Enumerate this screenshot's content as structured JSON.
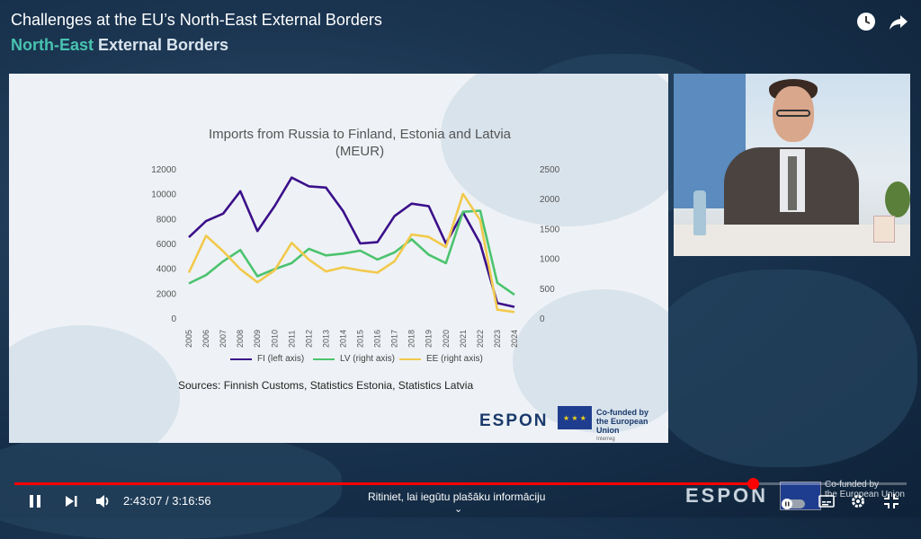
{
  "video": {
    "title": "Challenges at the EU’s North-East External Borders",
    "subtitle_accent": "North-East",
    "subtitle_rest": " External Borders"
  },
  "top_icons": [
    "watch-later-icon",
    "share-icon"
  ],
  "slide": {
    "title_line1": "Imports from Russia to Finland, Estonia and Latvia",
    "title_line2": "(MEUR)",
    "legend": [
      {
        "label": "FI (left axis)",
        "color": "#3b0f8a"
      },
      {
        "label": "LV (right axis)",
        "color": "#4cc36f"
      },
      {
        "label": "EE (right axis)",
        "color": "#f2c94c"
      }
    ],
    "sources": "Sources: Finnish Customs, Statistics Estonia, Statistics Latvia",
    "logo": "ESPON",
    "cofund_line1": "Co-funded by",
    "cofund_line2": "the European Union",
    "cofund_small": "Interreg"
  },
  "chart_data": {
    "type": "line",
    "title": "Imports from Russia to Finland, Estonia and Latvia (MEUR)",
    "x": [
      "2005",
      "2006",
      "2007",
      "2008",
      "2009",
      "2010",
      "2011",
      "2012",
      "2013",
      "2014",
      "2015",
      "2016",
      "2017",
      "2018",
      "2019",
      "2020",
      "2021",
      "2022",
      "2023",
      "2024"
    ],
    "left_ticks": [
      "12000",
      "10000",
      "8000",
      "6000",
      "4000",
      "2000",
      "0"
    ],
    "right_ticks": [
      "2500",
      "2000",
      "1500",
      "1000",
      "500",
      "0"
    ],
    "ylim_left": [
      0,
      12000
    ],
    "ylim_right": [
      0,
      2500
    ],
    "series": [
      {
        "name": "FI (left axis)",
        "axis": "left",
        "color": "#3b0f8a",
        "values": [
          6500,
          7800,
          8400,
          10200,
          7000,
          9000,
          11300,
          10600,
          10500,
          8600,
          6000,
          6100,
          8200,
          9200,
          9000,
          6000,
          8500,
          6000,
          1200,
          900
        ]
      },
      {
        "name": "LV (right axis)",
        "axis": "right",
        "color": "#4cc36f",
        "values": [
          580,
          720,
          950,
          1140,
          700,
          820,
          920,
          1160,
          1050,
          1080,
          1130,
          980,
          1100,
          1320,
          1060,
          920,
          1780,
          1800,
          590,
          390
        ]
      },
      {
        "name": "EE (right axis)",
        "axis": "right",
        "color": "#f2c94c",
        "values": [
          760,
          1380,
          1120,
          820,
          600,
          800,
          1260,
          980,
          780,
          850,
          800,
          760,
          950,
          1400,
          1360,
          1190,
          2080,
          1640,
          140,
          100
        ]
      }
    ]
  },
  "controls": {
    "time_current": "2:43:07",
    "time_total": "3:16:56",
    "time_display": "2:43:07 / 3:16:56",
    "progress": 0.828,
    "hint": "Ritiniet, lai iegūtu plašāku informāciju",
    "footer_logo": "ESPON",
    "footer_cofund_line1": "Co-funded by",
    "footer_cofund_line2": "the European Union",
    "accent_color": "#ff0000"
  }
}
